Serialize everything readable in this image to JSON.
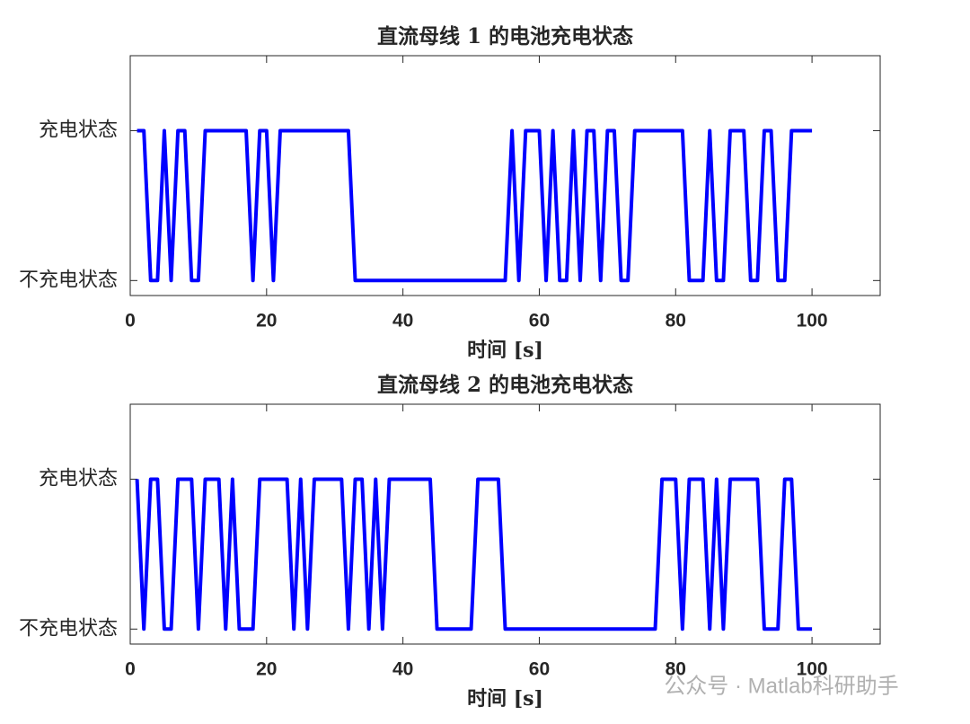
{
  "chart_data": [
    {
      "type": "line",
      "title": "直流母线 1 的电池充电状态",
      "x_label": "时间 [s]",
      "color": "#0000ff",
      "x": [
        1,
        2,
        3,
        4,
        5,
        6,
        7,
        8,
        9,
        10,
        11,
        12,
        13,
        14,
        15,
        16,
        17,
        18,
        19,
        20,
        21,
        22,
        23,
        24,
        25,
        26,
        27,
        28,
        29,
        30,
        31,
        32,
        33,
        34,
        35,
        36,
        37,
        38,
        39,
        40,
        41,
        42,
        43,
        44,
        45,
        46,
        47,
        48,
        49,
        50,
        51,
        52,
        53,
        54,
        55,
        56,
        57,
        58,
        59,
        60,
        61,
        62,
        63,
        64,
        65,
        66,
        67,
        68,
        69,
        70,
        71,
        72,
        73,
        74,
        75,
        76,
        77,
        78,
        79,
        80,
        81,
        82,
        83,
        84,
        85,
        86,
        87,
        88,
        89,
        90,
        91,
        92,
        93,
        94,
        95,
        96,
        97,
        98,
        99,
        100
      ],
      "values": [
        1,
        1,
        0,
        0,
        1,
        0,
        1,
        1,
        0,
        0,
        1,
        1,
        1,
        1,
        1,
        1,
        1,
        0,
        1,
        1,
        0,
        1,
        1,
        1,
        1,
        1,
        1,
        1,
        1,
        1,
        1,
        1,
        0,
        0,
        0,
        0,
        0,
        0,
        0,
        0,
        0,
        0,
        0,
        0,
        0,
        0,
        0,
        0,
        0,
        0,
        0,
        0,
        0,
        0,
        0,
        1,
        0,
        1,
        1,
        1,
        0,
        1,
        0,
        0,
        1,
        0,
        1,
        1,
        0,
        1,
        1,
        0,
        0,
        1,
        1,
        1,
        1,
        1,
        1,
        1,
        1,
        0,
        0,
        0,
        1,
        0,
        0,
        1,
        1,
        1,
        0,
        0,
        1,
        1,
        0,
        0,
        1,
        1,
        1,
        1
      ],
      "xlim": [
        0,
        110
      ],
      "xticks": [
        0,
        20,
        40,
        60,
        80,
        100
      ],
      "ylim": [
        -0.1,
        1.5
      ],
      "yticks": [
        {
          "value": 0,
          "label": "不充电状态"
        },
        {
          "value": 1,
          "label": "充电状态"
        }
      ]
    },
    {
      "type": "line",
      "title": "直流母线 2 的电池充电状态",
      "x_label": "时间 [s]",
      "color": "#0000ff",
      "x": [
        1,
        2,
        3,
        4,
        5,
        6,
        7,
        8,
        9,
        10,
        11,
        12,
        13,
        14,
        15,
        16,
        17,
        18,
        19,
        20,
        21,
        22,
        23,
        24,
        25,
        26,
        27,
        28,
        29,
        30,
        31,
        32,
        33,
        34,
        35,
        36,
        37,
        38,
        39,
        40,
        41,
        42,
        43,
        44,
        45,
        46,
        47,
        48,
        49,
        50,
        51,
        52,
        53,
        54,
        55,
        56,
        57,
        58,
        59,
        60,
        61,
        62,
        63,
        64,
        65,
        66,
        67,
        68,
        69,
        70,
        71,
        72,
        73,
        74,
        75,
        76,
        77,
        78,
        79,
        80,
        81,
        82,
        83,
        84,
        85,
        86,
        87,
        88,
        89,
        90,
        91,
        92,
        93,
        94,
        95,
        96,
        97,
        98,
        99,
        100
      ],
      "values": [
        1,
        0,
        1,
        1,
        0,
        0,
        1,
        1,
        1,
        0,
        1,
        1,
        1,
        0,
        1,
        0,
        0,
        0,
        1,
        1,
        1,
        1,
        1,
        0,
        1,
        0,
        1,
        1,
        1,
        1,
        1,
        0,
        1,
        1,
        0,
        1,
        0,
        1,
        1,
        1,
        1,
        1,
        1,
        1,
        0,
        0,
        0,
        0,
        0,
        0,
        1,
        1,
        1,
        1,
        0,
        0,
        0,
        0,
        0,
        0,
        0,
        0,
        0,
        0,
        0,
        0,
        0,
        0,
        0,
        0,
        0,
        0,
        0,
        0,
        0,
        0,
        0,
        1,
        1,
        1,
        0,
        1,
        1,
        1,
        0,
        1,
        0,
        1,
        1,
        1,
        1,
        1,
        0,
        0,
        0,
        1,
        1,
        0,
        0,
        0
      ],
      "xlim": [
        0,
        110
      ],
      "xticks": [
        0,
        20,
        40,
        60,
        80,
        100
      ],
      "ylim": [
        -0.1,
        1.5
      ],
      "yticks": [
        {
          "value": 0,
          "label": "不充电状态"
        },
        {
          "value": 1,
          "label": "充电状态"
        }
      ]
    }
  ],
  "watermark": "公众号 · Matlab科研助手"
}
